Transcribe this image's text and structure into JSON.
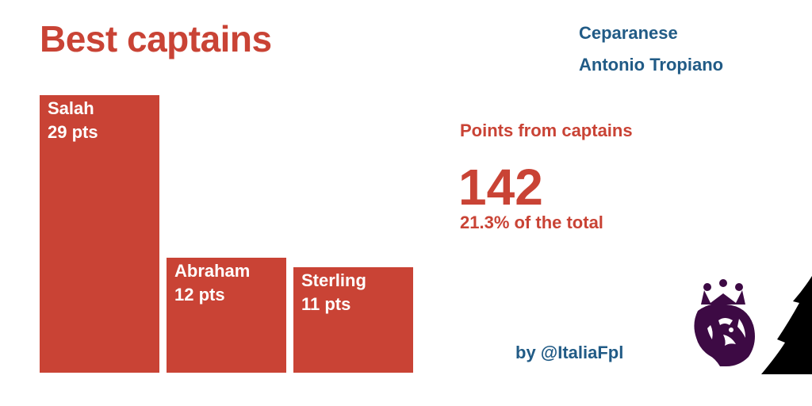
{
  "title": "Best captains",
  "team": {
    "name": "Ceparanese",
    "manager": "Antonio Tropiano"
  },
  "chart_data": {
    "type": "bar",
    "categories": [
      "Salah",
      "Abraham",
      "Sterling"
    ],
    "values": [
      29,
      12,
      11
    ],
    "value_suffix": "pts",
    "ylim": [
      0,
      29
    ],
    "grid": false,
    "color": "#c94335"
  },
  "stats": {
    "heading": "Points from captains",
    "value": "142",
    "percent": "21.3% of the total"
  },
  "credit": "by @ItaliaFpl",
  "colors": {
    "accent": "#c94335",
    "text_blue": "#215b86",
    "logo_purple": "#3d0a44"
  },
  "icons": {
    "logo": "premier-league-lion-icon"
  }
}
